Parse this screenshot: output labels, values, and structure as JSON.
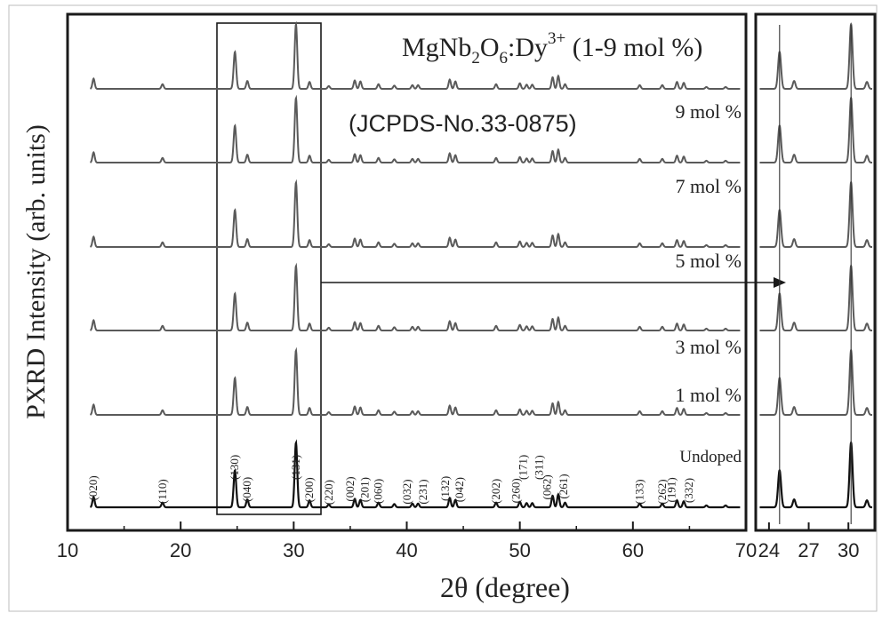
{
  "chart_data": {
    "type": "line",
    "title": "MgNb2O6:Dy3+ (1-9 mol %)",
    "title_parts": {
      "base": "MgNb",
      "sub1": "2",
      "mid": "O",
      "sub2": "6",
      "tail": ":Dy",
      "sup": "3+",
      "suffix": " (1-9 mol %)"
    },
    "reference": "(JCPDS-No.33-0875)",
    "xlabel": "2θ (degree)",
    "ylabel": "PXRD Intensity (arb. units)",
    "xlim": [
      10,
      70
    ],
    "x_ticks": [
      "10",
      "20",
      "30",
      "40",
      "50",
      "60",
      "70"
    ],
    "inset": {
      "xlim": [
        23,
        32
      ],
      "x_ticks": [
        "24",
        "27",
        "30"
      ],
      "reference_lines_x": [
        24.8,
        30.2
      ]
    },
    "series": [
      {
        "name": "Undoped",
        "baseline_level": 0
      },
      {
        "name": "1 mol %",
        "baseline_level": 1
      },
      {
        "name": "3 mol %",
        "baseline_level": 2
      },
      {
        "name": "5 mol %",
        "baseline_level": 3
      },
      {
        "name": "7 mol %",
        "baseline_level": 4
      },
      {
        "name": "9 mol %",
        "baseline_level": 5
      }
    ],
    "peaks": [
      {
        "x": 12.3,
        "h": 0.22,
        "hkl": "(020)"
      },
      {
        "x": 18.4,
        "h": 0.1,
        "hkl": "(110)"
      },
      {
        "x": 24.8,
        "h": 0.8,
        "hkl": "(130)"
      },
      {
        "x": 25.9,
        "h": 0.17,
        "hkl": "(040)"
      },
      {
        "x": 30.2,
        "h": 1.4,
        "hkl": "(131)"
      },
      {
        "x": 31.4,
        "h": 0.15,
        "hkl": "(200)"
      },
      {
        "x": 33.1,
        "h": 0.06,
        "hkl": "(220)"
      },
      {
        "x": 35.4,
        "h": 0.18,
        "hkl": "(002)"
      },
      {
        "x": 35.9,
        "h": 0.16,
        "hkl": "(201)"
      },
      {
        "x": 37.5,
        "h": 0.1,
        "hkl": "(060)"
      },
      {
        "x": 38.9,
        "h": 0.07,
        "hkl": ""
      },
      {
        "x": 40.5,
        "h": 0.08,
        "hkl": "(032)"
      },
      {
        "x": 41.0,
        "h": 0.08,
        "hkl": "(231)"
      },
      {
        "x": 43.8,
        "h": 0.2,
        "hkl": "(132)"
      },
      {
        "x": 44.3,
        "h": 0.16,
        "hkl": "(042)"
      },
      {
        "x": 47.9,
        "h": 0.1,
        "hkl": "(202)"
      },
      {
        "x": 50.0,
        "h": 0.12,
        "hkl": "(260)"
      },
      {
        "x": 50.6,
        "h": 0.09,
        "hkl": "(171)"
      },
      {
        "x": 51.1,
        "h": 0.09,
        "hkl": "(311)"
      },
      {
        "x": 52.9,
        "h": 0.25,
        "hkl": "(062)"
      },
      {
        "x": 53.4,
        "h": 0.28,
        "hkl": "(261)"
      },
      {
        "x": 54.0,
        "h": 0.1,
        "hkl": ""
      },
      {
        "x": 60.6,
        "h": 0.08,
        "hkl": "(133)"
      },
      {
        "x": 62.6,
        "h": 0.08,
        "hkl": "(262)"
      },
      {
        "x": 63.9,
        "h": 0.15,
        "hkl": "(191)"
      },
      {
        "x": 64.5,
        "h": 0.13,
        "hkl": "(332)"
      },
      {
        "x": 66.5,
        "h": 0.04,
        "hkl": ""
      },
      {
        "x": 68.2,
        "h": 0.04,
        "hkl": ""
      }
    ],
    "grid": false,
    "colors": {
      "undoped": "#111111",
      "doped": "#5a5a5a",
      "frame": "#1a1a1a"
    }
  }
}
